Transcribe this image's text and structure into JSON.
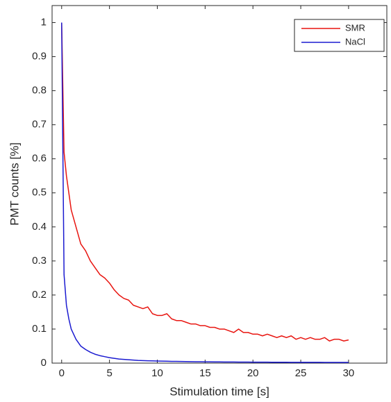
{
  "chart_data": {
    "type": "line",
    "x_label": "Stimulation time [s]",
    "y_label": "PMT counts [%]",
    "x": [
      0,
      0.25,
      0.5,
      0.75,
      1,
      1.5,
      2,
      2.5,
      3,
      3.5,
      4,
      4.5,
      5,
      5.5,
      6,
      6.5,
      7,
      7.5,
      8,
      8.5,
      9,
      9.5,
      10,
      10.5,
      11,
      11.5,
      12,
      12.5,
      13,
      13.5,
      14,
      14.5,
      15,
      15.5,
      16,
      16.5,
      17,
      17.5,
      18,
      18.5,
      19,
      19.5,
      20,
      20.5,
      21,
      21.5,
      22,
      22.5,
      23,
      23.5,
      24,
      24.5,
      25,
      25.5,
      26,
      26.5,
      27,
      27.5,
      28,
      28.5,
      29,
      29.5,
      30
    ],
    "series": [
      {
        "name": "SMR",
        "color": "#e8140f",
        "values": [
          1.0,
          0.62,
          0.55,
          0.5,
          0.45,
          0.4,
          0.35,
          0.33,
          0.3,
          0.28,
          0.26,
          0.25,
          0.235,
          0.215,
          0.2,
          0.19,
          0.185,
          0.17,
          0.165,
          0.16,
          0.165,
          0.145,
          0.14,
          0.14,
          0.145,
          0.13,
          0.125,
          0.125,
          0.12,
          0.115,
          0.115,
          0.11,
          0.11,
          0.105,
          0.105,
          0.1,
          0.1,
          0.095,
          0.09,
          0.1,
          0.09,
          0.09,
          0.085,
          0.085,
          0.08,
          0.085,
          0.08,
          0.075,
          0.08,
          0.075,
          0.08,
          0.07,
          0.075,
          0.07,
          0.075,
          0.07,
          0.07,
          0.075,
          0.065,
          0.07,
          0.07,
          0.065,
          0.068
        ]
      },
      {
        "name": "NaCl",
        "color": "#1a1ad0",
        "values": [
          1.0,
          0.26,
          0.17,
          0.13,
          0.1,
          0.07,
          0.05,
          0.04,
          0.032,
          0.026,
          0.022,
          0.019,
          0.016,
          0.014,
          0.012,
          0.011,
          0.01,
          0.009,
          0.008,
          0.0075,
          0.007,
          0.0065,
          0.006,
          0.0058,
          0.0055,
          0.0052,
          0.005,
          0.0048,
          0.0046,
          0.0044,
          0.0042,
          0.004,
          0.0038,
          0.0037,
          0.0036,
          0.0035,
          0.0034,
          0.0033,
          0.0032,
          0.0031,
          0.003,
          0.003,
          0.0029,
          0.0028,
          0.0028,
          0.0027,
          0.0026,
          0.0026,
          0.0025,
          0.0025,
          0.0024,
          0.0024,
          0.0023,
          0.0023,
          0.0022,
          0.0022,
          0.0022,
          0.0021,
          0.0021,
          0.0021,
          0.002,
          0.002,
          0.002
        ]
      }
    ],
    "xlim": [
      -1,
      34
    ],
    "ylim": [
      0,
      1.05
    ],
    "xticks": [
      0,
      5,
      10,
      15,
      20,
      25,
      30
    ],
    "yticks": [
      0,
      0.1,
      0.2,
      0.3,
      0.4,
      0.5,
      0.6,
      0.7,
      0.8,
      0.9,
      1
    ],
    "legend": "upper right"
  }
}
